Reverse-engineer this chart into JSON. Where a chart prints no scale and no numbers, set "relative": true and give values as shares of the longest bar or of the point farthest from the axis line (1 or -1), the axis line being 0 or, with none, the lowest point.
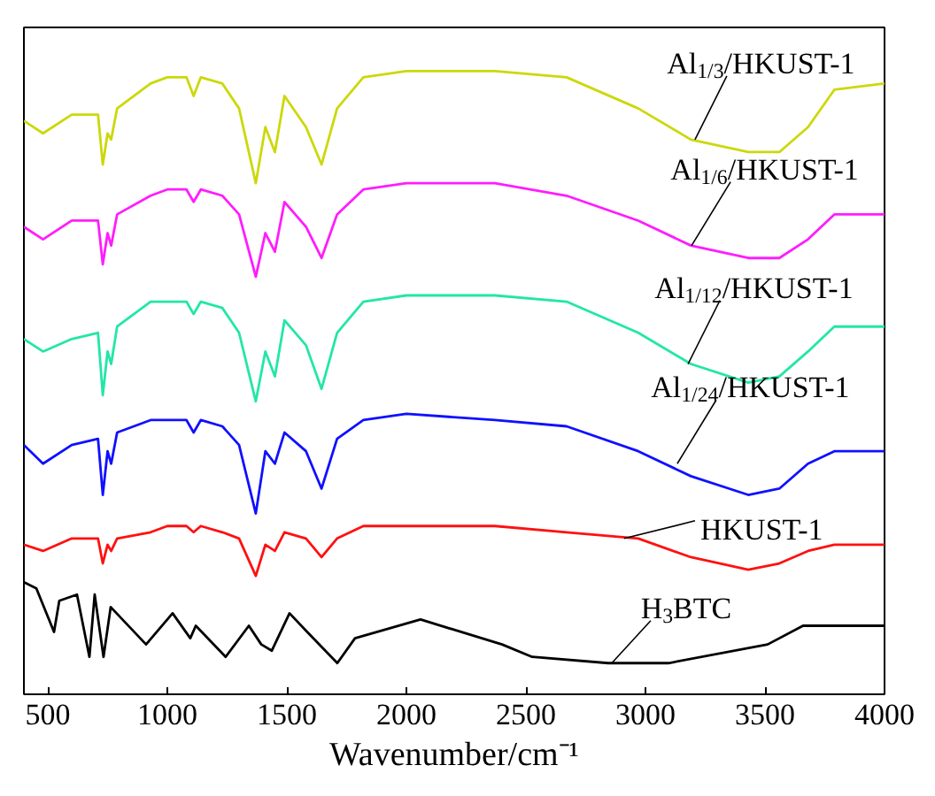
{
  "chart_data": {
    "type": "line",
    "relative": true,
    "xlabel": "Wavenumber/cm⁻¹",
    "xlim": [
      400,
      4000
    ],
    "xticks": [
      500,
      1000,
      1500,
      2000,
      2500,
      3000,
      3500,
      4000
    ],
    "grid": false,
    "x": [
      400,
      480,
      600,
      710,
      730,
      750,
      765,
      790,
      930,
      1000,
      1080,
      1110,
      1140,
      1230,
      1300,
      1370,
      1410,
      1450,
      1490,
      1580,
      1645,
      1710,
      1820,
      2000,
      2370,
      2670,
      2970,
      3190,
      3430,
      3560,
      3680,
      3790,
      4000
    ],
    "series": [
      {
        "color": "#ccd80a",
        "values": [
          0.92,
          0.9,
          0.93,
          0.93,
          0.85,
          0.9,
          0.89,
          0.94,
          0.98,
          0.99,
          0.99,
          0.96,
          0.99,
          0.98,
          0.94,
          0.82,
          0.91,
          0.87,
          0.96,
          0.91,
          0.85,
          0.94,
          0.99,
          1.0,
          1.0,
          0.99,
          0.94,
          0.89,
          0.87,
          0.87,
          0.91,
          0.97,
          0.98
        ]
      },
      {
        "color": "#ff1cff",
        "values": [
          0.75,
          0.73,
          0.76,
          0.76,
          0.69,
          0.74,
          0.72,
          0.77,
          0.8,
          0.81,
          0.81,
          0.79,
          0.81,
          0.8,
          0.77,
          0.67,
          0.74,
          0.71,
          0.79,
          0.75,
          0.7,
          0.77,
          0.81,
          0.82,
          0.82,
          0.8,
          0.76,
          0.72,
          0.7,
          0.7,
          0.73,
          0.77,
          0.77
        ]
      },
      {
        "color": "#22e6a8",
        "values": [
          0.57,
          0.55,
          0.57,
          0.58,
          0.48,
          0.55,
          0.53,
          0.59,
          0.63,
          0.63,
          0.63,
          0.61,
          0.63,
          0.62,
          0.58,
          0.47,
          0.55,
          0.51,
          0.6,
          0.56,
          0.49,
          0.58,
          0.63,
          0.64,
          0.64,
          0.63,
          0.58,
          0.53,
          0.5,
          0.51,
          0.55,
          0.59,
          0.59
        ]
      },
      {
        "color": "#1010ff",
        "values": [
          0.4,
          0.37,
          0.4,
          0.41,
          0.32,
          0.39,
          0.37,
          0.42,
          0.44,
          0.44,
          0.44,
          0.42,
          0.44,
          0.43,
          0.4,
          0.29,
          0.39,
          0.37,
          0.42,
          0.39,
          0.33,
          0.41,
          0.44,
          0.45,
          0.44,
          0.43,
          0.39,
          0.35,
          0.32,
          0.33,
          0.37,
          0.39,
          0.39
        ]
      },
      {
        "color": "#ff1010",
        "values": [
          0.24,
          0.23,
          0.25,
          0.25,
          0.21,
          0.24,
          0.23,
          0.25,
          0.26,
          0.27,
          0.27,
          0.26,
          0.27,
          0.26,
          0.25,
          0.19,
          0.24,
          0.23,
          0.26,
          0.25,
          0.22,
          0.25,
          0.27,
          0.27,
          0.27,
          0.26,
          0.25,
          0.22,
          0.2,
          0.21,
          0.23,
          0.24,
          0.24
        ]
      },
      {
        "color": "#000000",
        "x": [
          400,
          452,
          526,
          548,
          622,
          674,
          696,
          733,
          763,
          911,
          1022,
          1096,
          1119,
          1244,
          1341,
          1393,
          1437,
          1511,
          1585,
          1711,
          1785,
          2059,
          2400,
          2526,
          2844,
          3096,
          3511,
          3659,
          4000
        ],
        "values": [
          0.18,
          0.17,
          0.1,
          0.15,
          0.16,
          0.06,
          0.16,
          0.06,
          0.14,
          0.08,
          0.13,
          0.09,
          0.11,
          0.06,
          0.11,
          0.08,
          0.07,
          0.13,
          0.1,
          0.05,
          0.09,
          0.12,
          0.08,
          0.06,
          0.05,
          0.05,
          0.08,
          0.11,
          0.11
        ]
      }
    ],
    "annotations": [
      {
        "text": "Al$_{1/3}$/HKUST-1",
        "x": 3207,
        "y": 0.89
      },
      {
        "text": "Al$_{1/6}$/HKUST-1",
        "x": 3193,
        "y": 0.72
      },
      {
        "text": "Al$_{1/12}$/HKUST-1",
        "x": 3178,
        "y": 0.53
      },
      {
        "text": "Al$_{1/24}$/HKUST-1",
        "x": 3133,
        "y": 0.37
      },
      {
        "text": "HKUST-1",
        "x": 2911,
        "y": 0.25
      },
      {
        "text": "H$_{3}$BTC",
        "x": 2859,
        "y": 0.05
      }
    ]
  }
}
